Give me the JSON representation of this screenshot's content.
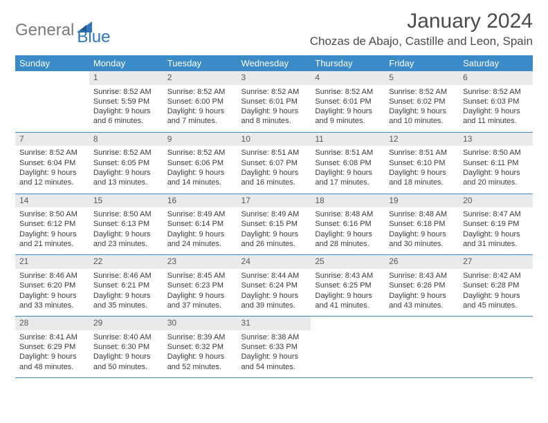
{
  "logo": {
    "text1": "General",
    "text2": "Blue"
  },
  "title": "January 2024",
  "location": "Chozas de Abajo, Castille and Leon, Spain",
  "colors": {
    "header_bg": "#3b8bc9",
    "header_fg": "#ffffff",
    "daynum_bg": "#e9eaec",
    "rule": "#3b8bc9",
    "text": "#3a3a3a",
    "logo_gray": "#7a7a7a",
    "logo_blue": "#2f78bd"
  },
  "day_headers": [
    "Sunday",
    "Monday",
    "Tuesday",
    "Wednesday",
    "Thursday",
    "Friday",
    "Saturday"
  ],
  "weeks": [
    [
      {
        "n": "",
        "sr": "",
        "ss": "",
        "dl": ""
      },
      {
        "n": "1",
        "sr": "Sunrise: 8:52 AM",
        "ss": "Sunset: 5:59 PM",
        "dl": "Daylight: 9 hours and 6 minutes."
      },
      {
        "n": "2",
        "sr": "Sunrise: 8:52 AM",
        "ss": "Sunset: 6:00 PM",
        "dl": "Daylight: 9 hours and 7 minutes."
      },
      {
        "n": "3",
        "sr": "Sunrise: 8:52 AM",
        "ss": "Sunset: 6:01 PM",
        "dl": "Daylight: 9 hours and 8 minutes."
      },
      {
        "n": "4",
        "sr": "Sunrise: 8:52 AM",
        "ss": "Sunset: 6:01 PM",
        "dl": "Daylight: 9 hours and 9 minutes."
      },
      {
        "n": "5",
        "sr": "Sunrise: 8:52 AM",
        "ss": "Sunset: 6:02 PM",
        "dl": "Daylight: 9 hours and 10 minutes."
      },
      {
        "n": "6",
        "sr": "Sunrise: 8:52 AM",
        "ss": "Sunset: 6:03 PM",
        "dl": "Daylight: 9 hours and 11 minutes."
      }
    ],
    [
      {
        "n": "7",
        "sr": "Sunrise: 8:52 AM",
        "ss": "Sunset: 6:04 PM",
        "dl": "Daylight: 9 hours and 12 minutes."
      },
      {
        "n": "8",
        "sr": "Sunrise: 8:52 AM",
        "ss": "Sunset: 6:05 PM",
        "dl": "Daylight: 9 hours and 13 minutes."
      },
      {
        "n": "9",
        "sr": "Sunrise: 8:52 AM",
        "ss": "Sunset: 6:06 PM",
        "dl": "Daylight: 9 hours and 14 minutes."
      },
      {
        "n": "10",
        "sr": "Sunrise: 8:51 AM",
        "ss": "Sunset: 6:07 PM",
        "dl": "Daylight: 9 hours and 16 minutes."
      },
      {
        "n": "11",
        "sr": "Sunrise: 8:51 AM",
        "ss": "Sunset: 6:08 PM",
        "dl": "Daylight: 9 hours and 17 minutes."
      },
      {
        "n": "12",
        "sr": "Sunrise: 8:51 AM",
        "ss": "Sunset: 6:10 PM",
        "dl": "Daylight: 9 hours and 18 minutes."
      },
      {
        "n": "13",
        "sr": "Sunrise: 8:50 AM",
        "ss": "Sunset: 6:11 PM",
        "dl": "Daylight: 9 hours and 20 minutes."
      }
    ],
    [
      {
        "n": "14",
        "sr": "Sunrise: 8:50 AM",
        "ss": "Sunset: 6:12 PM",
        "dl": "Daylight: 9 hours and 21 minutes."
      },
      {
        "n": "15",
        "sr": "Sunrise: 8:50 AM",
        "ss": "Sunset: 6:13 PM",
        "dl": "Daylight: 9 hours and 23 minutes."
      },
      {
        "n": "16",
        "sr": "Sunrise: 8:49 AM",
        "ss": "Sunset: 6:14 PM",
        "dl": "Daylight: 9 hours and 24 minutes."
      },
      {
        "n": "17",
        "sr": "Sunrise: 8:49 AM",
        "ss": "Sunset: 6:15 PM",
        "dl": "Daylight: 9 hours and 26 minutes."
      },
      {
        "n": "18",
        "sr": "Sunrise: 8:48 AM",
        "ss": "Sunset: 6:16 PM",
        "dl": "Daylight: 9 hours and 28 minutes."
      },
      {
        "n": "19",
        "sr": "Sunrise: 8:48 AM",
        "ss": "Sunset: 6:18 PM",
        "dl": "Daylight: 9 hours and 30 minutes."
      },
      {
        "n": "20",
        "sr": "Sunrise: 8:47 AM",
        "ss": "Sunset: 6:19 PM",
        "dl": "Daylight: 9 hours and 31 minutes."
      }
    ],
    [
      {
        "n": "21",
        "sr": "Sunrise: 8:46 AM",
        "ss": "Sunset: 6:20 PM",
        "dl": "Daylight: 9 hours and 33 minutes."
      },
      {
        "n": "22",
        "sr": "Sunrise: 8:46 AM",
        "ss": "Sunset: 6:21 PM",
        "dl": "Daylight: 9 hours and 35 minutes."
      },
      {
        "n": "23",
        "sr": "Sunrise: 8:45 AM",
        "ss": "Sunset: 6:23 PM",
        "dl": "Daylight: 9 hours and 37 minutes."
      },
      {
        "n": "24",
        "sr": "Sunrise: 8:44 AM",
        "ss": "Sunset: 6:24 PM",
        "dl": "Daylight: 9 hours and 39 minutes."
      },
      {
        "n": "25",
        "sr": "Sunrise: 8:43 AM",
        "ss": "Sunset: 6:25 PM",
        "dl": "Daylight: 9 hours and 41 minutes."
      },
      {
        "n": "26",
        "sr": "Sunrise: 8:43 AM",
        "ss": "Sunset: 6:26 PM",
        "dl": "Daylight: 9 hours and 43 minutes."
      },
      {
        "n": "27",
        "sr": "Sunrise: 8:42 AM",
        "ss": "Sunset: 6:28 PM",
        "dl": "Daylight: 9 hours and 45 minutes."
      }
    ],
    [
      {
        "n": "28",
        "sr": "Sunrise: 8:41 AM",
        "ss": "Sunset: 6:29 PM",
        "dl": "Daylight: 9 hours and 48 minutes."
      },
      {
        "n": "29",
        "sr": "Sunrise: 8:40 AM",
        "ss": "Sunset: 6:30 PM",
        "dl": "Daylight: 9 hours and 50 minutes."
      },
      {
        "n": "30",
        "sr": "Sunrise: 8:39 AM",
        "ss": "Sunset: 6:32 PM",
        "dl": "Daylight: 9 hours and 52 minutes."
      },
      {
        "n": "31",
        "sr": "Sunrise: 8:38 AM",
        "ss": "Sunset: 6:33 PM",
        "dl": "Daylight: 9 hours and 54 minutes."
      },
      {
        "n": "",
        "sr": "",
        "ss": "",
        "dl": ""
      },
      {
        "n": "",
        "sr": "",
        "ss": "",
        "dl": ""
      },
      {
        "n": "",
        "sr": "",
        "ss": "",
        "dl": ""
      }
    ]
  ]
}
